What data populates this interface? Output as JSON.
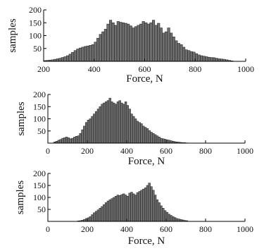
{
  "chart_data": [
    {
      "type": "bar",
      "xlabel": "Force, N",
      "ylabel": "samples",
      "xlim": [
        200,
        1000
      ],
      "ylim": [
        0,
        200
      ],
      "xticks": [
        200,
        400,
        600,
        800,
        1000
      ],
      "yticks": [
        50,
        100,
        150,
        200
      ],
      "bin_width": 10,
      "bin_start": 200,
      "values": [
        3,
        4,
        5,
        6,
        8,
        10,
        12,
        15,
        18,
        22,
        28,
        35,
        42,
        48,
        52,
        55,
        58,
        60,
        62,
        65,
        75,
        90,
        105,
        115,
        125,
        145,
        160,
        150,
        140,
        155,
        152,
        150,
        148,
        145,
        138,
        130,
        135,
        140,
        145,
        155,
        150,
        145,
        150,
        160,
        140,
        148,
        130,
        110,
        115,
        130,
        110,
        95,
        80,
        70,
        65,
        55,
        45,
        42,
        38,
        36,
        30,
        25,
        22,
        20,
        18,
        16,
        15,
        14,
        12,
        10,
        9,
        8,
        6,
        4,
        2
      ]
    },
    {
      "type": "bar",
      "xlabel": "Force, N",
      "ylabel": "samples",
      "xlim": [
        0,
        1000
      ],
      "ylim": [
        0,
        200
      ],
      "xticks": [
        0,
        200,
        400,
        600,
        800,
        1000
      ],
      "yticks": [
        50,
        100,
        150,
        200
      ],
      "bin_width": 10,
      "bin_start": 30,
      "values": [
        5,
        8,
        12,
        15,
        20,
        22,
        25,
        22,
        18,
        20,
        25,
        28,
        30,
        40,
        55,
        70,
        85,
        95,
        100,
        110,
        120,
        130,
        140,
        150,
        160,
        165,
        170,
        175,
        185,
        170,
        165,
        160,
        170,
        175,
        165,
        160,
        170,
        155,
        140,
        120,
        110,
        100,
        90,
        85,
        80,
        70,
        65,
        60,
        52,
        45,
        40,
        35,
        30,
        25,
        20,
        18,
        16,
        14,
        12,
        10,
        8,
        6,
        5,
        4,
        3,
        2,
        2,
        1
      ]
    },
    {
      "type": "bar",
      "xlabel": "Force, N",
      "ylabel": "samples",
      "xlim": [
        0,
        1000
      ],
      "ylim": [
        0,
        200
      ],
      "xticks": [
        0,
        200,
        400,
        600,
        800,
        1000
      ],
      "yticks": [
        50,
        100,
        150,
        200
      ],
      "bin_width": 10,
      "bin_start": 150,
      "values": [
        2,
        3,
        5,
        8,
        12,
        15,
        20,
        28,
        36,
        42,
        48,
        55,
        62,
        70,
        78,
        85,
        90,
        95,
        100,
        105,
        110,
        108,
        112,
        115,
        110,
        105,
        118,
        122,
        115,
        110,
        120,
        125,
        130,
        135,
        140,
        150,
        160,
        145,
        130,
        110,
        90,
        78,
        65,
        55,
        45,
        38,
        30,
        25,
        20,
        16,
        12,
        10,
        8,
        6,
        4,
        3
      ]
    }
  ]
}
